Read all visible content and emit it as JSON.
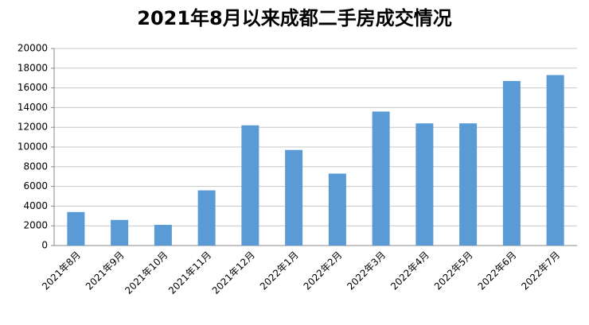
{
  "chart_data": {
    "type": "bar",
    "title": "2021年8月以来成都二手房成交情况",
    "categories": [
      "2021年8月",
      "2021年9月",
      "2021年10月",
      "2021年11月",
      "2021年12月",
      "2022年1月",
      "2022年2月",
      "2022年3月",
      "2022年4月",
      "2022年5月",
      "2022年6月",
      "2022年7月"
    ],
    "values": [
      3400,
      2600,
      2100,
      5600,
      12200,
      9700,
      7300,
      13600,
      12400,
      12400,
      16700,
      17300
    ],
    "color": "#5b9bd5",
    "ylim": [
      0,
      20000
    ],
    "yticks": [
      0,
      2000,
      4000,
      6000,
      8000,
      10000,
      12000,
      14000,
      16000,
      18000,
      20000
    ],
    "grid": true
  }
}
